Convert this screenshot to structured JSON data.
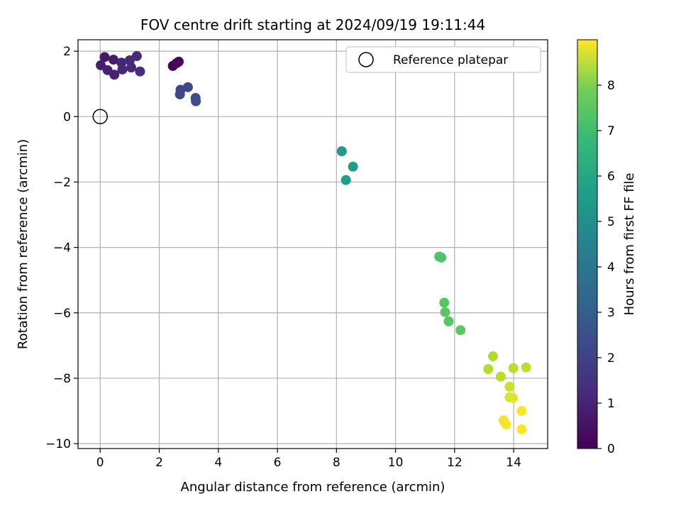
{
  "chart_data": {
    "type": "scatter",
    "title": "FOV centre drift starting at 2024/09/19 19:11:44",
    "xlabel": "Angular distance from reference (arcmin)",
    "ylabel": "Rotation from reference (arcmin)",
    "xlim": [
      -0.75,
      15.15
    ],
    "ylim": [
      -10.15,
      2.35
    ],
    "xticks": [
      0,
      2,
      4,
      6,
      8,
      10,
      12,
      14
    ],
    "yticks": [
      2,
      0,
      -2,
      -4,
      -6,
      -8,
      -10
    ],
    "xtick_labels": [
      "0",
      "2",
      "4",
      "6",
      "8",
      "10",
      "12",
      "14"
    ],
    "ytick_labels": [
      "2",
      "0",
      "−2",
      "−4",
      "−6",
      "−8",
      "−10"
    ],
    "grid": true,
    "legend": {
      "placement": "top-right",
      "entries": [
        "Reference platepar"
      ]
    },
    "reference_point": {
      "label": "Reference platepar",
      "x": 0,
      "y": 0,
      "marker": "open-circle"
    },
    "colorbar": {
      "label": "Hours from first FF file",
      "colormap": "viridis",
      "range": [
        0,
        9.0
      ],
      "ticks": [
        0,
        1,
        2,
        3,
        4,
        5,
        6,
        7,
        8
      ]
    },
    "points": [
      {
        "x": 2.46,
        "y": 1.55,
        "c": 0.05
      },
      {
        "x": 2.58,
        "y": 1.63,
        "c": 0.15
      },
      {
        "x": 2.66,
        "y": 1.68,
        "c": 0.2
      },
      {
        "x": 0.15,
        "y": 1.82,
        "c": 0.6
      },
      {
        "x": 0.45,
        "y": 1.74,
        "c": 0.7
      },
      {
        "x": 0.02,
        "y": 1.57,
        "c": 0.75
      },
      {
        "x": 0.25,
        "y": 1.42,
        "c": 0.8
      },
      {
        "x": 0.48,
        "y": 1.28,
        "c": 0.85
      },
      {
        "x": 0.72,
        "y": 1.65,
        "c": 0.9
      },
      {
        "x": 0.75,
        "y": 1.44,
        "c": 0.95
      },
      {
        "x": 1.0,
        "y": 1.72,
        "c": 1.0
      },
      {
        "x": 1.05,
        "y": 1.5,
        "c": 1.05
      },
      {
        "x": 1.24,
        "y": 1.85,
        "c": 1.1
      },
      {
        "x": 1.35,
        "y": 1.38,
        "c": 1.15
      },
      {
        "x": 2.72,
        "y": 0.82,
        "c": 1.9
      },
      {
        "x": 2.97,
        "y": 0.9,
        "c": 1.95
      },
      {
        "x": 2.7,
        "y": 0.68,
        "c": 2.0
      },
      {
        "x": 3.23,
        "y": 0.57,
        "c": 2.05
      },
      {
        "x": 3.24,
        "y": 0.47,
        "c": 2.1
      },
      {
        "x": 8.18,
        "y": -1.06,
        "c": 4.9
      },
      {
        "x": 8.56,
        "y": -1.53,
        "c": 4.95
      },
      {
        "x": 8.32,
        "y": -1.94,
        "c": 5.0
      },
      {
        "x": 11.48,
        "y": -4.28,
        "c": 6.5
      },
      {
        "x": 11.55,
        "y": -4.31,
        "c": 6.5
      },
      {
        "x": 11.65,
        "y": -5.69,
        "c": 6.6
      },
      {
        "x": 11.68,
        "y": -5.98,
        "c": 6.6
      },
      {
        "x": 11.8,
        "y": -6.26,
        "c": 6.6
      },
      {
        "x": 12.2,
        "y": -6.53,
        "c": 6.7
      },
      {
        "x": 13.3,
        "y": -7.33,
        "c": 7.9
      },
      {
        "x": 13.14,
        "y": -7.72,
        "c": 7.95
      },
      {
        "x": 13.56,
        "y": -7.95,
        "c": 8.0
      },
      {
        "x": 13.99,
        "y": -7.69,
        "c": 8.05
      },
      {
        "x": 14.42,
        "y": -7.67,
        "c": 8.1
      },
      {
        "x": 13.86,
        "y": -8.26,
        "c": 8.3
      },
      {
        "x": 13.86,
        "y": -8.58,
        "c": 8.5
      },
      {
        "x": 13.97,
        "y": -8.6,
        "c": 8.6
      },
      {
        "x": 13.66,
        "y": -9.29,
        "c": 8.8
      },
      {
        "x": 13.74,
        "y": -9.41,
        "c": 8.9
      },
      {
        "x": 14.27,
        "y": -9.0,
        "c": 9.0
      },
      {
        "x": 14.27,
        "y": -9.56,
        "c": 9.0
      }
    ]
  }
}
